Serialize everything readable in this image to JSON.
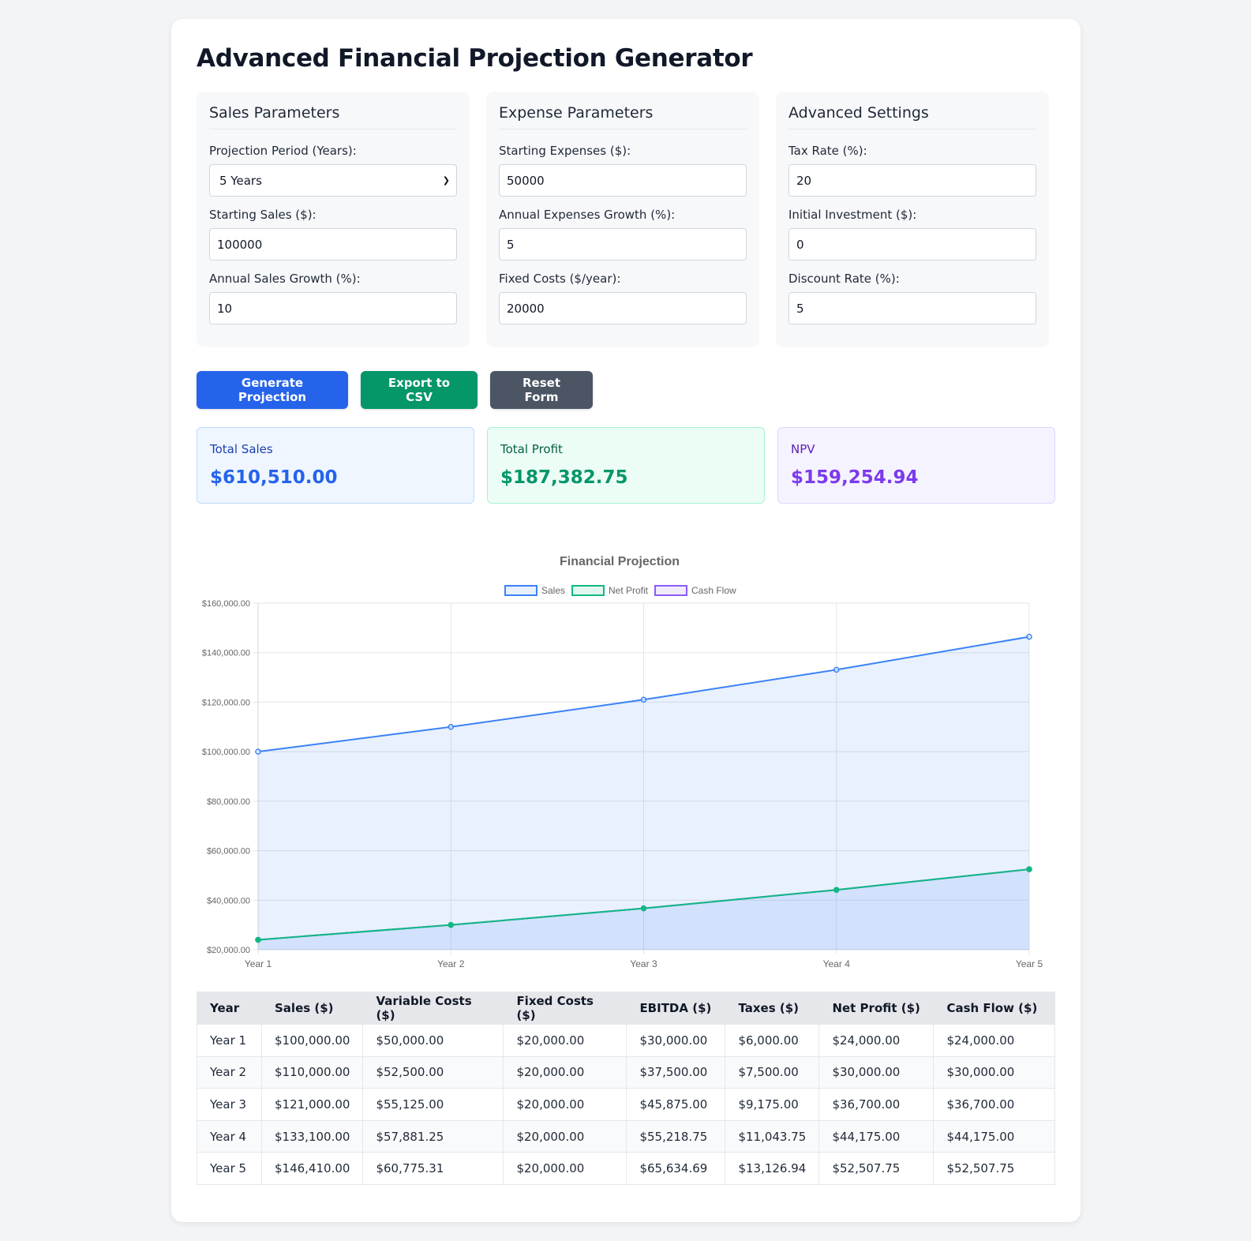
{
  "header": {
    "title": "Advanced Financial Projection Generator"
  },
  "sales_params": {
    "title": "Sales Parameters",
    "period_label": "Projection Period (Years):",
    "period_value": "5 Years",
    "starting_sales_label": "Starting Sales ($):",
    "starting_sales_value": "100000",
    "growth_label": "Annual Sales Growth (%):",
    "growth_value": "10"
  },
  "expense_params": {
    "title": "Expense Parameters",
    "starting_expenses_label": "Starting Expenses ($):",
    "starting_expenses_value": "50000",
    "growth_label": "Annual Expenses Growth (%):",
    "growth_value": "5",
    "fixed_label": "Fixed Costs ($/year):",
    "fixed_value": "20000"
  },
  "advanced": {
    "title": "Advanced Settings",
    "tax_label": "Tax Rate (%):",
    "tax_value": "20",
    "investment_label": "Initial Investment ($):",
    "investment_value": "0",
    "discount_label": "Discount Rate (%):",
    "discount_value": "5"
  },
  "buttons": {
    "generate": "Generate Projection",
    "export": "Export to CSV",
    "reset": "Reset Form"
  },
  "stats": {
    "total_sales_label": "Total Sales",
    "total_sales_value": "$610,510.00",
    "total_profit_label": "Total Profit",
    "total_profit_value": "$187,382.75",
    "npv_label": "NPV",
    "npv_value": "$159,254.94"
  },
  "colors": {
    "sales": "#3b82f6",
    "net_profit": "#10b981",
    "cash_flow": "#8b5cf6"
  },
  "chart_data": {
    "type": "line",
    "title": "Financial Projection",
    "categories": [
      "Year 1",
      "Year 2",
      "Year 3",
      "Year 4",
      "Year 5"
    ],
    "series": [
      {
        "name": "Sales",
        "values": [
          100000,
          110000,
          121000,
          133100,
          146410
        ]
      },
      {
        "name": "Net Profit",
        "values": [
          24000,
          30000,
          36700,
          44175,
          52507.75
        ]
      },
      {
        "name": "Cash Flow",
        "values": [
          24000,
          30000,
          36700,
          44175,
          52507.75
        ]
      }
    ],
    "ylim": [
      20000,
      160000
    ],
    "yticks": [
      "$20,000.00",
      "$40,000.00",
      "$60,000.00",
      "$80,000.00",
      "$100,000.00",
      "$120,000.00",
      "$140,000.00",
      "$160,000.00"
    ],
    "grid": true,
    "legend": "top-center"
  },
  "table": {
    "headers": [
      "Year",
      "Sales ($)",
      "Variable Costs ($)",
      "Fixed Costs ($)",
      "EBITDA ($)",
      "Taxes ($)",
      "Net Profit ($)",
      "Cash Flow ($)"
    ],
    "rows": [
      [
        "Year 1",
        "$100,000.00",
        "$50,000.00",
        "$20,000.00",
        "$30,000.00",
        "$6,000.00",
        "$24,000.00",
        "$24,000.00"
      ],
      [
        "Year 2",
        "$110,000.00",
        "$52,500.00",
        "$20,000.00",
        "$37,500.00",
        "$7,500.00",
        "$30,000.00",
        "$30,000.00"
      ],
      [
        "Year 3",
        "$121,000.00",
        "$55,125.00",
        "$20,000.00",
        "$45,875.00",
        "$9,175.00",
        "$36,700.00",
        "$36,700.00"
      ],
      [
        "Year 4",
        "$133,100.00",
        "$57,881.25",
        "$20,000.00",
        "$55,218.75",
        "$11,043.75",
        "$44,175.00",
        "$44,175.00"
      ],
      [
        "Year 5",
        "$146,410.00",
        "$60,775.31",
        "$20,000.00",
        "$65,634.69",
        "$13,126.94",
        "$52,507.75",
        "$52,507.75"
      ]
    ]
  }
}
